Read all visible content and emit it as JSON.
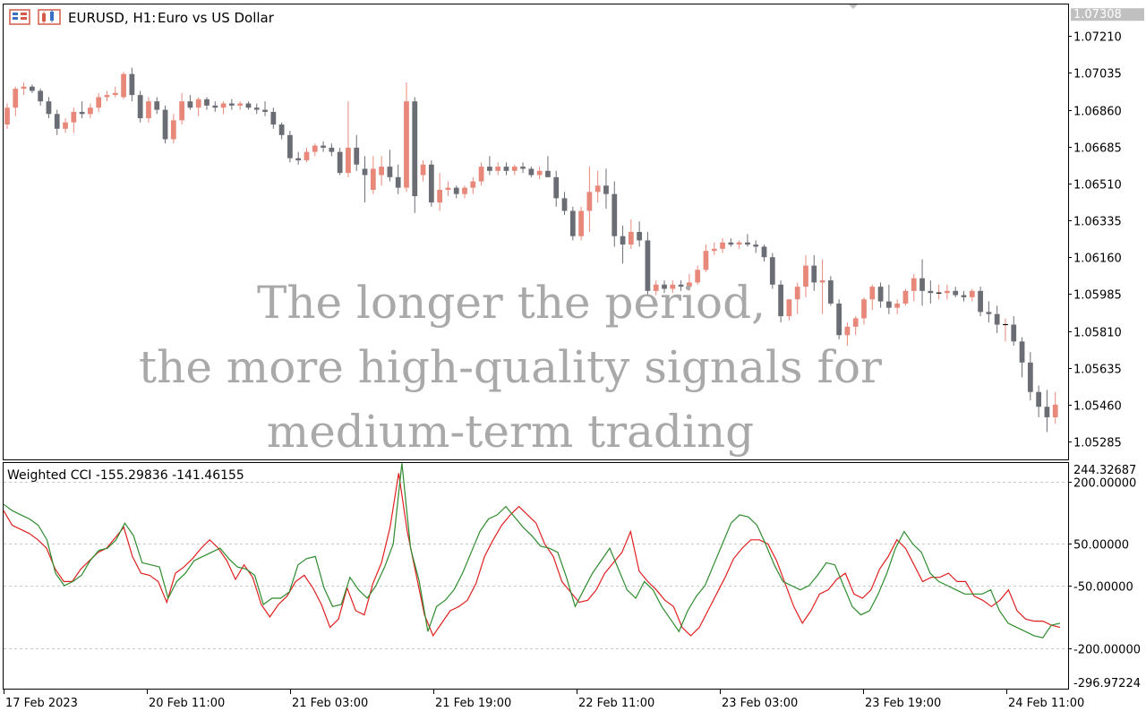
{
  "header": {
    "symbol_label": "EURUSD, H1:",
    "description": "Euro vs US Dollar"
  },
  "overlay_text": [
    "The longer the period,",
    "the more high-quality signals for",
    "medium-term trading"
  ],
  "colors": {
    "bull_candle": "#e8887a",
    "bear_candle": "#6b6d74",
    "cci_fast": "#2e8b2e",
    "cci_slow": "#e02020",
    "grid": "#c8c8c8",
    "frame": "#000000",
    "overlay": "#a9a9a9",
    "price_badge_bg": "#c0c0c0"
  },
  "chart_data": [
    {
      "type": "candlestick",
      "title": "EURUSD, H1:  Euro vs US Dollar",
      "ylim": [
        1.052,
        1.0736
      ],
      "ticks": [
        "1.07210",
        "1.07035",
        "1.06860",
        "1.06685",
        "1.06510",
        "1.06335",
        "1.06160",
        "1.05985",
        "1.05810",
        "1.05635",
        "1.05460",
        "1.05285"
      ],
      "tick_values": [
        1.0721,
        1.07035,
        1.0686,
        1.06685,
        1.0651,
        1.06335,
        1.0616,
        1.05985,
        1.0581,
        1.05635,
        1.0546,
        1.05285
      ],
      "current_price_label": "1.07308",
      "current_price": 1.07308,
      "candles": [
        [
          1.0679,
          1.0689,
          1.0677,
          1.0687
        ],
        [
          1.0687,
          1.0697,
          1.0683,
          1.0696
        ],
        [
          1.0696,
          1.0699,
          1.0693,
          1.0697
        ],
        [
          1.0697,
          1.0698,
          1.0694,
          1.0695
        ],
        [
          1.0695,
          1.0696,
          1.0688,
          1.069
        ],
        [
          1.069,
          1.0692,
          1.0682,
          1.0684
        ],
        [
          1.0684,
          1.0686,
          1.0674,
          1.0677
        ],
        [
          1.0677,
          1.0682,
          1.0675,
          1.068
        ],
        [
          1.068,
          1.0687,
          1.0675,
          1.0685
        ],
        [
          1.0685,
          1.069,
          1.0682,
          1.0684
        ],
        [
          1.0684,
          1.0689,
          1.0682,
          1.0687
        ],
        [
          1.0687,
          1.0694,
          1.0685,
          1.0692
        ],
        [
          1.0692,
          1.0695,
          1.069,
          1.0693
        ],
        [
          1.0693,
          1.0697,
          1.0692,
          1.0694
        ],
        [
          1.0692,
          1.0704,
          1.0691,
          1.0703
        ],
        [
          1.0703,
          1.0706,
          1.069,
          1.0693
        ],
        [
          1.0693,
          1.0695,
          1.068,
          1.0682
        ],
        [
          1.0682,
          1.0692,
          1.068,
          1.069
        ],
        [
          1.069,
          1.0692,
          1.0684,
          1.0686
        ],
        [
          1.0686,
          1.0688,
          1.067,
          1.0672
        ],
        [
          1.0672,
          1.0684,
          1.067,
          1.0681
        ],
        [
          1.0681,
          1.0694,
          1.0679,
          1.069
        ],
        [
          1.069,
          1.0693,
          1.0686,
          1.0687
        ],
        [
          1.0687,
          1.0692,
          1.0683,
          1.0691
        ],
        [
          1.0691,
          1.0692,
          1.0686,
          1.0688
        ],
        [
          1.0688,
          1.069,
          1.0685,
          1.0687
        ],
        [
          1.0687,
          1.069,
          1.0684,
          1.0689
        ],
        [
          1.0689,
          1.0691,
          1.0686,
          1.0688
        ],
        [
          1.0688,
          1.069,
          1.0686,
          1.0689
        ],
        [
          1.0689,
          1.069,
          1.0686,
          1.0687
        ],
        [
          1.0687,
          1.0689,
          1.0684,
          1.0686
        ],
        [
          1.0686,
          1.069,
          1.0683,
          1.0685
        ],
        [
          1.0685,
          1.0687,
          1.0677,
          1.0679
        ],
        [
          1.0679,
          1.068,
          1.0672,
          1.0674
        ],
        [
          1.0674,
          1.0676,
          1.0661,
          1.0663
        ],
        [
          1.0663,
          1.0666,
          1.066,
          1.0662
        ],
        [
          1.0662,
          1.0668,
          1.0661,
          1.0666
        ],
        [
          1.0666,
          1.067,
          1.0664,
          1.0669
        ],
        [
          1.0669,
          1.0671,
          1.0666,
          1.0668
        ],
        [
          1.0668,
          1.067,
          1.0664,
          1.0666
        ],
        [
          1.0666,
          1.0668,
          1.0655,
          1.0656
        ],
        [
          1.0656,
          1.069,
          1.0654,
          1.0668
        ],
        [
          1.0668,
          1.0674,
          1.0657,
          1.066
        ],
        [
          1.0658,
          1.0664,
          1.0642,
          1.0655
        ],
        [
          1.0648,
          1.0664,
          1.0646,
          1.0658
        ],
        [
          1.0655,
          1.0664,
          1.065,
          1.0659
        ],
        [
          1.0659,
          1.0667,
          1.0652,
          1.0654
        ],
        [
          1.0654,
          1.066,
          1.0646,
          1.0649
        ],
        [
          1.0649,
          1.0699,
          1.0647,
          1.069
        ],
        [
          1.069,
          1.0692,
          1.0637,
          1.0645
        ],
        [
          1.0655,
          1.0662,
          1.0652,
          1.066
        ],
        [
          1.066,
          1.0662,
          1.064,
          1.0642
        ],
        [
          1.0642,
          1.0656,
          1.0638,
          1.0648
        ],
        [
          1.0648,
          1.0652,
          1.0645,
          1.0649
        ],
        [
          1.0649,
          1.065,
          1.0644,
          1.0646
        ],
        [
          1.0646,
          1.065,
          1.0644,
          1.0649
        ],
        [
          1.0649,
          1.0654,
          1.0646,
          1.0652
        ],
        [
          1.0652,
          1.0661,
          1.065,
          1.0659
        ],
        [
          1.0659,
          1.0664,
          1.0655,
          1.0657
        ],
        [
          1.0657,
          1.0661,
          1.0655,
          1.0659
        ],
        [
          1.0659,
          1.0661,
          1.0655,
          1.0657
        ],
        [
          1.0657,
          1.066,
          1.0655,
          1.0659
        ],
        [
          1.0659,
          1.0661,
          1.0656,
          1.0658
        ],
        [
          1.0658,
          1.0659,
          1.0654,
          1.0655
        ],
        [
          1.0655,
          1.0659,
          1.0653,
          1.0657
        ],
        [
          1.0657,
          1.0664,
          1.0654,
          1.0654
        ],
        [
          1.0654,
          1.0657,
          1.064,
          1.0644
        ],
        [
          1.0644,
          1.0647,
          1.0636,
          1.0638
        ],
        [
          1.0638,
          1.064,
          1.0624,
          1.0626
        ],
        [
          1.0626,
          1.064,
          1.0624,
          1.0638
        ],
        [
          1.0638,
          1.0659,
          1.0628,
          1.0647
        ],
        [
          1.0647,
          1.0657,
          1.0642,
          1.065
        ],
        [
          1.065,
          1.0658,
          1.0639,
          1.0646
        ],
        [
          1.0646,
          1.0652,
          1.0621,
          1.0626
        ],
        [
          1.0626,
          1.0631,
          1.0613,
          1.0622
        ],
        [
          1.0622,
          1.0634,
          1.062,
          1.0628
        ],
        [
          1.0628,
          1.0633,
          1.0621,
          1.0624
        ],
        [
          1.0624,
          1.0628,
          1.0598,
          1.06
        ],
        [
          1.06,
          1.0605,
          1.0598,
          1.0603
        ],
        [
          1.0603,
          1.0605,
          1.0599,
          1.0601
        ],
        [
          1.0601,
          1.0605,
          1.0599,
          1.0603
        ],
        [
          1.0603,
          1.0605,
          1.06,
          1.0602
        ],
        [
          1.0602,
          1.0608,
          1.06,
          1.0604
        ],
        [
          1.0604,
          1.0612,
          1.0603,
          1.061
        ],
        [
          1.061,
          1.0622,
          1.0609,
          1.0619
        ],
        [
          1.0619,
          1.0623,
          1.0617,
          1.062
        ],
        [
          1.062,
          1.0625,
          1.0618,
          1.0623
        ],
        [
          1.0623,
          1.0625,
          1.0621,
          1.0622
        ],
        [
          1.0622,
          1.0624,
          1.062,
          1.0623
        ],
        [
          1.0623,
          1.0627,
          1.0621,
          1.0622
        ],
        [
          1.0622,
          1.0624,
          1.0618,
          1.0621
        ],
        [
          1.0621,
          1.0622,
          1.0614,
          1.0616
        ],
        [
          1.0616,
          1.0618,
          1.0601,
          1.0603
        ],
        [
          1.0603,
          1.0605,
          1.0585,
          1.0588
        ],
        [
          1.0588,
          1.0596,
          1.0586,
          1.0596
        ],
        [
          1.0596,
          1.0604,
          1.0589,
          1.0602
        ],
        [
          1.0602,
          1.0617,
          1.0597,
          1.0612
        ],
        [
          1.0612,
          1.0617,
          1.06,
          1.0604
        ],
        [
          1.0604,
          1.0615,
          1.0589,
          1.0605
        ],
        [
          1.0605,
          1.0607,
          1.0593,
          1.0594
        ],
        [
          1.0594,
          1.0596,
          1.0577,
          1.0579
        ],
        [
          1.0579,
          1.0585,
          1.0574,
          1.0583
        ],
        [
          1.0583,
          1.0588,
          1.0579,
          1.0587
        ],
        [
          1.0587,
          1.0597,
          1.0584,
          1.0596
        ],
        [
          1.0596,
          1.0603,
          1.0591,
          1.0602
        ],
        [
          1.0602,
          1.0604,
          1.0592,
          1.0595
        ],
        [
          1.0595,
          1.0603,
          1.0589,
          1.0592
        ],
        [
          1.0592,
          1.0596,
          1.0589,
          1.0594
        ],
        [
          1.0594,
          1.0601,
          1.0593,
          1.06
        ],
        [
          1.06,
          1.0608,
          1.0595,
          1.0606
        ],
        [
          1.0606,
          1.0615,
          1.0593,
          1.06
        ],
        [
          1.06,
          1.0605,
          1.0594,
          1.0599
        ],
        [
          1.0599,
          1.0603,
          1.0596,
          1.0599
        ],
        [
          1.0599,
          1.0603,
          1.0596,
          1.06
        ],
        [
          1.06,
          1.0602,
          1.0597,
          1.0598
        ],
        [
          1.0598,
          1.06,
          1.0595,
          1.0597
        ],
        [
          1.0597,
          1.0601,
          1.0595,
          1.06
        ],
        [
          1.06,
          1.0602,
          1.0588,
          1.059
        ],
        [
          1.059,
          1.0595,
          1.0585,
          1.0589
        ],
        [
          1.0589,
          1.0593,
          1.058,
          1.0584
        ],
        [
          1.0584,
          1.0587,
          1.0576,
          1.0584
        ],
        [
          1.0584,
          1.0588,
          1.0574,
          1.0576
        ],
        [
          1.0576,
          1.0578,
          1.0559,
          1.0566
        ],
        [
          1.0566,
          1.0571,
          1.0548,
          1.0552
        ],
        [
          1.0552,
          1.0555,
          1.054,
          1.0545
        ],
        [
          1.0545,
          1.0553,
          1.0533,
          1.054
        ],
        [
          1.054,
          1.0552,
          1.0537,
          1.0546
        ]
      ]
    },
    {
      "type": "line",
      "title": "Weighted CCI -155.29836 -141.46155",
      "ylim": [
        -296.97224,
        244.32687
      ],
      "top_label": "244.32687",
      "bottom_label": "-296.97224",
      "levels": [
        200,
        50,
        -50,
        -200
      ],
      "level_labels": [
        "200.00000",
        "50.00000",
        "-50.00000",
        "-200.00000"
      ],
      "series": [
        {
          "values": [
            130,
            95,
            85,
            75,
            60,
            40,
            -10,
            -40,
            -40,
            -10,
            10,
            30,
            40,
            65,
            90,
            20,
            -20,
            -25,
            -40,
            -90,
            -20,
            -5,
            15,
            40,
            60,
            40,
            10,
            -35,
            0,
            -30,
            -95,
            -125,
            -95,
            -75,
            -40,
            -25,
            -55,
            -95,
            -150,
            -130,
            -55,
            -110,
            -120,
            -45,
            5,
            90,
            220,
            80,
            -20,
            -120,
            -170,
            -140,
            -110,
            -100,
            -85,
            -45,
            20,
            60,
            95,
            120,
            140,
            120,
            100,
            50,
            20,
            -40,
            -65,
            -90,
            -85,
            -60,
            -20,
            5,
            30,
            80,
            -15,
            -40,
            -60,
            -85,
            -100,
            -150,
            -170,
            -150,
            -110,
            -70,
            -30,
            15,
            40,
            60,
            60,
            50,
            10,
            -45,
            -100,
            -140,
            -110,
            -70,
            -60,
            -35,
            -20,
            -70,
            -80,
            -60,
            -10,
            20,
            60,
            40,
            0,
            -40,
            -30,
            -30,
            -20,
            -40,
            -40,
            -75,
            -85,
            -100,
            -85,
            -60,
            -110,
            -130,
            -135,
            -135,
            -145,
            -150
          ]
        },
        {
          "values": [
            145,
            130,
            120,
            110,
            95,
            60,
            -20,
            -50,
            -40,
            -25,
            10,
            35,
            40,
            60,
            100,
            70,
            5,
            0,
            -5,
            -80,
            -40,
            -20,
            10,
            20,
            30,
            40,
            15,
            -5,
            -10,
            -25,
            -95,
            -80,
            -80,
            -65,
            0,
            15,
            20,
            -55,
            -100,
            -95,
            -30,
            -60,
            -80,
            -50,
            -5,
            50,
            244,
            40,
            -40,
            -160,
            -100,
            -85,
            -60,
            -20,
            30,
            80,
            110,
            120,
            140,
            115,
            90,
            70,
            45,
            40,
            30,
            -30,
            -100,
            -60,
            -20,
            10,
            40,
            -10,
            -60,
            -80,
            -40,
            -60,
            -100,
            -130,
            -160,
            -110,
            -75,
            -50,
            0,
            50,
            100,
            120,
            115,
            95,
            50,
            0,
            -40,
            -50,
            -60,
            -50,
            -25,
            5,
            0,
            -50,
            -100,
            -120,
            -110,
            -70,
            -20,
            40,
            80,
            50,
            30,
            -20,
            -40,
            -50,
            -60,
            -70,
            -70,
            -70,
            -60,
            -110,
            -140,
            -150,
            -160,
            -170,
            -175,
            -145,
            -140
          ]
        }
      ]
    }
  ],
  "x_axis": {
    "labels": [
      "17 Feb 2023",
      "20 Feb 11:00",
      "21 Feb 03:00",
      "21 Feb 19:00",
      "22 Feb 11:00",
      "23 Feb 03:00",
      "23 Feb 19:00",
      "24 Feb 11:00"
    ]
  }
}
